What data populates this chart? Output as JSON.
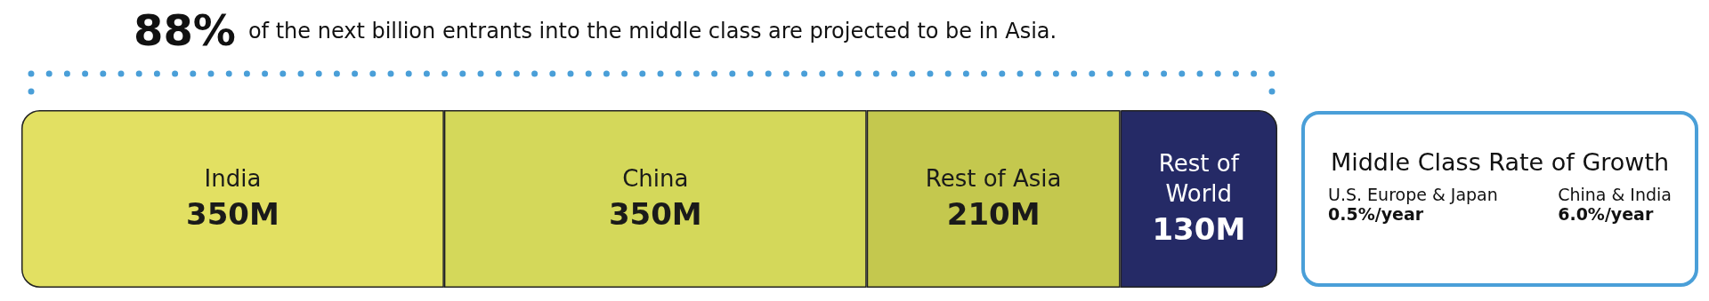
{
  "chart_data": [
    {
      "type": "bar",
      "title": "88%",
      "subtitle": "of the next billion entrants into the middle class are projected to be in Asia.",
      "orientation": "horizontal",
      "stacked": true,
      "categories": [
        null
      ],
      "xlim": [
        0,
        1040
      ],
      "tick_labels": false,
      "legend": false,
      "series": [
        {
          "name": "India",
          "color": "#e2e062",
          "values": [
            350
          ],
          "value_labels": [
            "350M"
          ]
        },
        {
          "name": "China",
          "color": "#d4d85a",
          "values": [
            350
          ],
          "value_labels": [
            "350M"
          ]
        },
        {
          "name": "Rest of Asia",
          "color": "#c4c84e",
          "values": [
            210
          ],
          "value_labels": [
            "210M"
          ]
        },
        {
          "name": "Rest of World",
          "color": "#252a66",
          "values": [
            130
          ],
          "value_labels": [
            "130M"
          ]
        }
      ]
    },
    {
      "type": "other",
      "title": "Middle Class Rate of Growth",
      "annotations": [
        "U.S. Europe & Japan",
        "0.5%/year",
        "China & India",
        "6.0%/year"
      ]
    }
  ]
}
